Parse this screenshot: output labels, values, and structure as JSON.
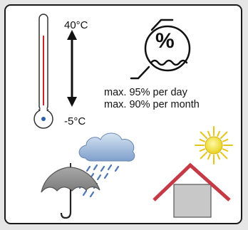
{
  "temperature": {
    "max_label": "40°C",
    "min_label": "-5°C"
  },
  "humidity": {
    "symbol": "%",
    "per_day": "max. 95% per day",
    "per_month": "max. 90% per month"
  },
  "colors": {
    "thermometer_fill": "#c0272d",
    "thermometer_bulb": "#2b5fa8",
    "cloud": "#8fb0d6",
    "rain": "#4e78b5",
    "umbrella": "#8a8a8a",
    "sun": "#f2e43a",
    "roof": "#c43a47",
    "house": "#c8c8c8"
  },
  "icons": [
    "thermometer-icon",
    "temperature-range-arrow-icon",
    "humidity-icon",
    "rain-cloud-icon",
    "umbrella-icon",
    "sun-icon",
    "house-icon"
  ]
}
